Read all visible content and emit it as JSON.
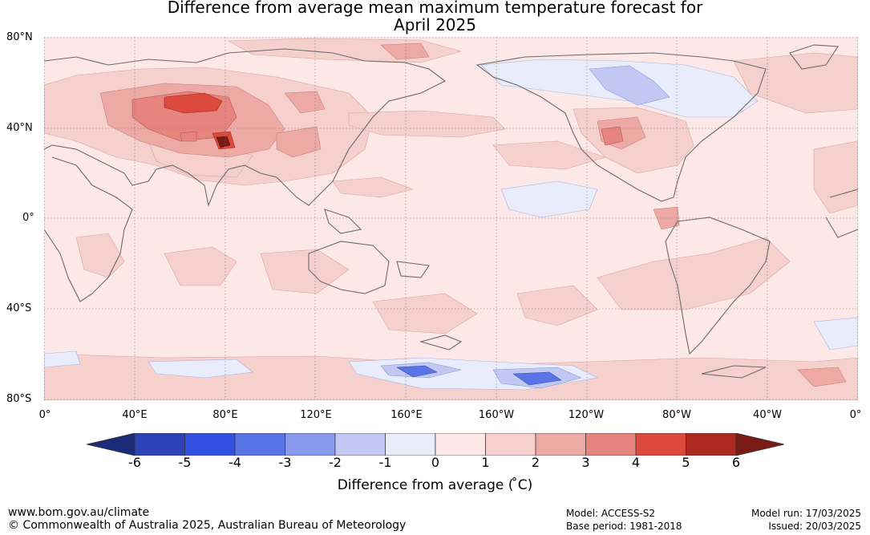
{
  "title": {
    "line1": "Difference from average mean maximum temperature forecast for",
    "line2": "April 2025"
  },
  "map": {
    "latitude_labels": [
      "80°N",
      "40°N",
      "0°",
      "40°S",
      "80°S"
    ],
    "longitude_labels": [
      "0°",
      "40°E",
      "80°E",
      "120°E",
      "160°E",
      "160°W",
      "120°W",
      "80°W",
      "40°W",
      "0°"
    ],
    "central_longitude": 180,
    "lat_range": [
      -80,
      80
    ]
  },
  "colorbar": {
    "ticks": [
      "-6",
      "-5",
      "-4",
      "-3",
      "-2",
      "-1",
      "0",
      "1",
      "2",
      "3",
      "4",
      "5",
      "6"
    ],
    "label": "Difference from average ( ̊C)",
    "colors": [
      "#1c2a7a",
      "#2b43b5",
      "#3350e3",
      "#5a74e6",
      "#8898ea",
      "#c1c9f3",
      "#e9ecfb",
      "#fce8e6",
      "#f5d0cd",
      "#edaaa5",
      "#e6847d",
      "#db4a3c",
      "#ad2a22",
      "#7a1a14"
    ]
  },
  "footer": {
    "website": "www.bom.gov.au/climate",
    "copyright": "© Commonwealth of Australia 2025, Australian Bureau of Meteorology",
    "model": "Model: ACCESS-S2",
    "base_period": "Base period: 1981-2018",
    "model_run": "Model run: 17/03/2025",
    "issued": "Issued: 20/03/2025"
  }
}
